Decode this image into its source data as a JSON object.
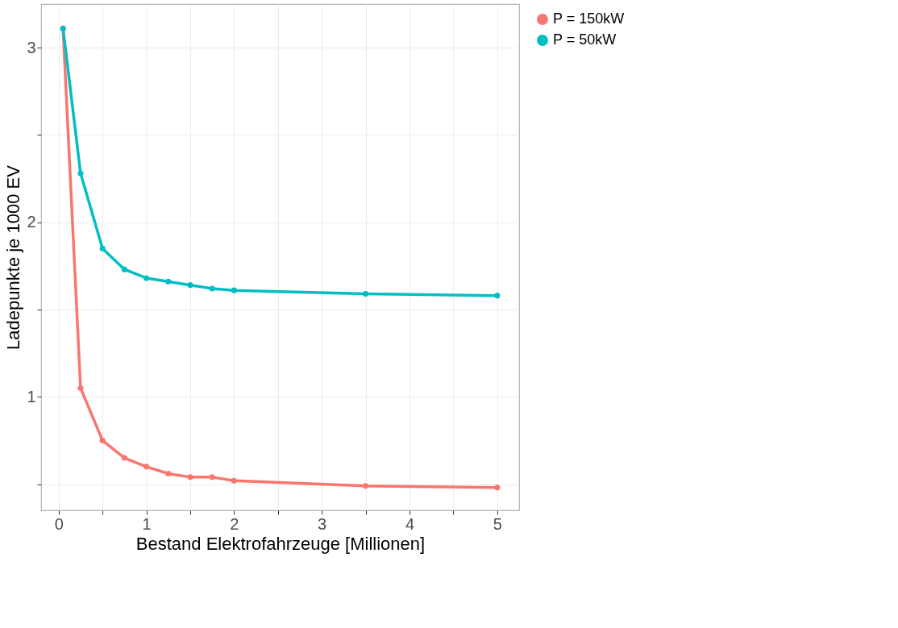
{
  "chart_data": {
    "type": "line",
    "xlabel": "Bestand Elektrofahrzeuge [Millionen]",
    "ylabel": "Ladepunkte je 1000 EV",
    "x": [
      0.05,
      0.25,
      0.5,
      0.75,
      1,
      1.25,
      1.5,
      1.75,
      2,
      3.5,
      5
    ],
    "series": [
      {
        "name": "P = 150kW",
        "color": "#f8766d",
        "values": [
          3.11,
          1.05,
          0.75,
          0.65,
          0.6,
          0.56,
          0.54,
          0.54,
          0.52,
          0.49,
          0.48
        ]
      },
      {
        "name": "P = 50kW",
        "color": "#00bfc4",
        "values": [
          3.11,
          2.28,
          1.85,
          1.73,
          1.68,
          1.66,
          1.64,
          1.62,
          1.61,
          1.59,
          1.58
        ]
      }
    ],
    "xlim": [
      -0.2,
      5.25
    ],
    "ylim": [
      0.35,
      3.25
    ],
    "xticks": [
      0,
      {
        "value": 0.5,
        "label": null
      },
      1,
      {
        "value": 1.5,
        "label": null
      },
      2,
      {
        "value": 2.5,
        "label": null
      },
      3,
      {
        "value": 3.5,
        "label": null
      },
      4,
      {
        "value": 4.5,
        "label": null
      },
      5
    ],
    "yticks": [
      {
        "value": 0.5,
        "label": null
      },
      1,
      {
        "value": 1.5,
        "label": null
      },
      2,
      {
        "value": 2.5,
        "label": null
      },
      3
    ],
    "grid": true,
    "legend": "right",
    "marker": "circle",
    "line_style": "solid"
  }
}
